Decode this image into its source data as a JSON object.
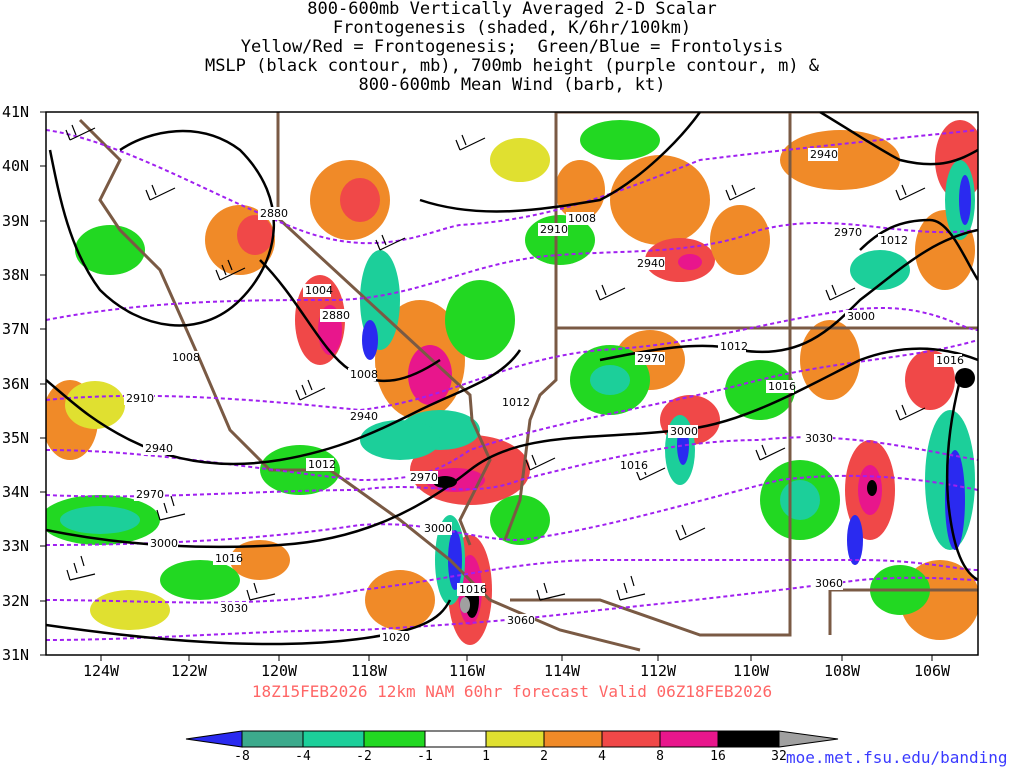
{
  "title_lines": [
    "800-600mb Vertically Averaged 2-D Scalar",
    "Frontogenesis (shaded, K/6hr/100km)",
    "Yellow/Red = Frontogenesis;  Green/Blue = Frontolysis",
    "MSLP (black contour, mb), 700mb height (purple contour, m) &",
    "800-600mb Mean Wind (barb, kt)"
  ],
  "lat_labels": [
    "41N",
    "40N",
    "39N",
    "38N",
    "37N",
    "36N",
    "35N",
    "34N",
    "33N",
    "32N",
    "31N"
  ],
  "lon_labels": [
    "124W",
    "122W",
    "120W",
    "118W",
    "116W",
    "114W",
    "112W",
    "110W",
    "108W",
    "106W"
  ],
  "valid_text": "18Z15FEB2026 12km NAM 60hr forecast Valid 06Z18FEB2026",
  "legend": {
    "labels": [
      "-8",
      "-4",
      "-2",
      "-1",
      "1",
      "2",
      "4",
      "8",
      "16",
      "32"
    ],
    "colors": [
      "#2a2af0",
      "#3caa8c",
      "#1ccf9a",
      "#22d822",
      "#ffffff",
      "#e0e030",
      "#f08a28",
      "#f04848",
      "#e8168c",
      "#000000",
      "#a0a0a0"
    ]
  },
  "height_labels": [
    "2880",
    "2880",
    "2910",
    "2910",
    "2940",
    "2940",
    "2940",
    "2940",
    "2970",
    "2970",
    "2970",
    "2970",
    "3000",
    "3000",
    "3000",
    "3000",
    "3030",
    "3030",
    "3060",
    "3060"
  ],
  "mslp_labels": [
    "1004",
    "1008",
    "1008",
    "1008",
    "1012",
    "1012",
    "1012",
    "1012",
    "1016",
    "1016",
    "1016",
    "1016",
    "1016",
    "1020"
  ],
  "colors": {
    "mslp": "#000000",
    "height": "#a020f0",
    "border": "#7a5a44",
    "valid_text": "#ff6666",
    "url": "#3a3aff"
  },
  "url": "moe.met.fsu.edu/banding"
}
